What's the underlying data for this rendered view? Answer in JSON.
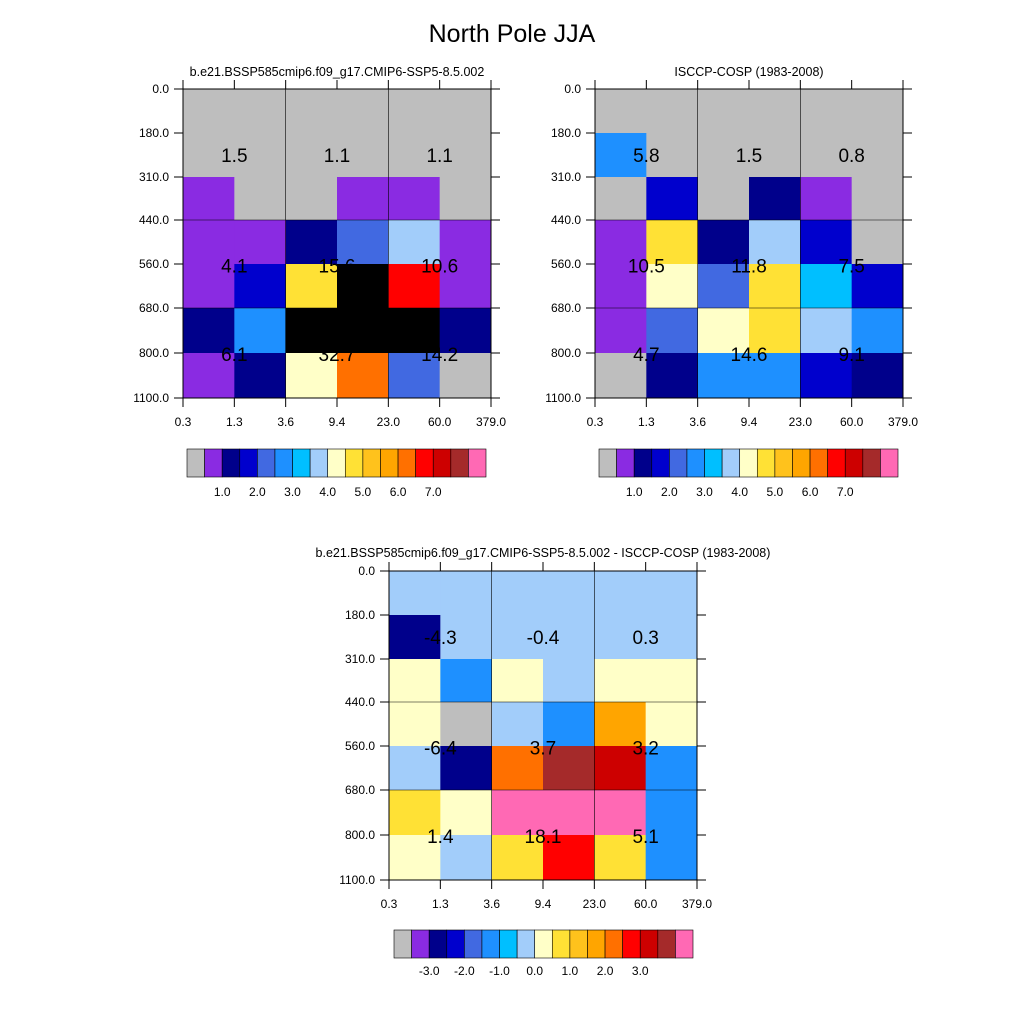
{
  "title": "North Pole JJA",
  "chart_data": [
    {
      "type": "heatmap",
      "title": "b.e21.BSSP585cmip6.f09_g17.CMIP6-SSP5-8.5.002",
      "x_ticks": [
        "0.3",
        "1.3",
        "3.6",
        "9.4",
        "23.0",
        "60.0",
        "379.0"
      ],
      "y_ticks": [
        "0.0",
        "180.0",
        "310.0",
        "440.0",
        "560.0",
        "680.0",
        "800.0",
        "1100.0"
      ],
      "cells": [
        [
          0,
          0,
          0,
          0,
          0,
          0
        ],
        [
          0,
          0,
          0,
          0,
          0,
          0
        ],
        [
          1,
          0,
          0,
          1,
          1,
          0
        ],
        [
          1,
          1,
          2,
          4,
          7,
          1
        ],
        [
          1,
          3,
          9,
          18,
          13,
          1
        ],
        [
          2,
          5,
          18,
          18,
          18,
          2
        ],
        [
          1,
          2,
          8,
          12,
          4,
          0
        ]
      ],
      "summaries": [
        {
          "text": "1.5",
          "col": 0.5,
          "row": 1.5
        },
        {
          "text": "1.1",
          "col": 2.5,
          "row": 1.5
        },
        {
          "text": "1.1",
          "col": 4.5,
          "row": 1.5
        },
        {
          "text": "4.1",
          "col": 0.5,
          "row": 4
        },
        {
          "text": "15.6",
          "col": 2.5,
          "row": 4
        },
        {
          "text": "10.6",
          "col": 4.5,
          "row": 4
        },
        {
          "text": "6.1",
          "col": 0.5,
          "row": 6
        },
        {
          "text": "32.7",
          "col": 2.5,
          "row": 6
        },
        {
          "text": "14.2",
          "col": 4.5,
          "row": 6
        }
      ],
      "colorbar": {
        "colors": [
          "#bebebe",
          "#8a2be2",
          "#00008b",
          "#0000cd",
          "#4169e1",
          "#1e90ff",
          "#00bfff",
          "#a2cdfa",
          "#ffffc8",
          "#ffe135",
          "#ffc21c",
          "#ffa500",
          "#ff7000",
          "#ff0000",
          "#cd0000",
          "#a52a2a",
          "#ff69b4"
        ],
        "labels": [
          "1.0",
          "2.0",
          "3.0",
          "4.0",
          "5.0",
          "6.0",
          "7.0"
        ]
      }
    },
    {
      "type": "heatmap",
      "title": "ISCCP-COSP (1983-2008)",
      "x_ticks": [
        "0.3",
        "1.3",
        "3.6",
        "9.4",
        "23.0",
        "60.0",
        "379.0"
      ],
      "y_ticks": [
        "0.0",
        "180.0",
        "310.0",
        "440.0",
        "560.0",
        "680.0",
        "800.0",
        "1100.0"
      ],
      "cells": [
        [
          0,
          0,
          0,
          0,
          0,
          0
        ],
        [
          5,
          0,
          0,
          0,
          0,
          0
        ],
        [
          0,
          3,
          0,
          2,
          1,
          0
        ],
        [
          1,
          9,
          2,
          7,
          3,
          0
        ],
        [
          1,
          8,
          4,
          9,
          6,
          3
        ],
        [
          1,
          4,
          8,
          9,
          7,
          5
        ],
        [
          0,
          2,
          5,
          5,
          3,
          2
        ]
      ],
      "summaries": [
        {
          "text": "5.8",
          "col": 0.5,
          "row": 1.5
        },
        {
          "text": "1.5",
          "col": 2.5,
          "row": 1.5
        },
        {
          "text": "0.8",
          "col": 4.5,
          "row": 1.5
        },
        {
          "text": "10.5",
          "col": 0.5,
          "row": 4
        },
        {
          "text": "11.8",
          "col": 2.5,
          "row": 4
        },
        {
          "text": "7.5",
          "col": 4.5,
          "row": 4
        },
        {
          "text": "4.7",
          "col": 0.5,
          "row": 6
        },
        {
          "text": "14.6",
          "col": 2.5,
          "row": 6
        },
        {
          "text": "9.1",
          "col": 4.5,
          "row": 6
        }
      ],
      "colorbar": {
        "colors": [
          "#bebebe",
          "#8a2be2",
          "#00008b",
          "#0000cd",
          "#4169e1",
          "#1e90ff",
          "#00bfff",
          "#a2cdfa",
          "#ffffc8",
          "#ffe135",
          "#ffc21c",
          "#ffa500",
          "#ff7000",
          "#ff0000",
          "#cd0000",
          "#a52a2a",
          "#ff69b4"
        ],
        "labels": [
          "1.0",
          "2.0",
          "3.0",
          "4.0",
          "5.0",
          "6.0",
          "7.0"
        ]
      }
    },
    {
      "type": "heatmap",
      "title": "b.e21.BSSP585cmip6.f09_g17.CMIP6-SSP5-8.5.002 - ISCCP-COSP (1983-2008)",
      "x_ticks": [
        "0.3",
        "1.3",
        "3.6",
        "9.4",
        "23.0",
        "60.0",
        "379.0"
      ],
      "y_ticks": [
        "0.0",
        "180.0",
        "310.0",
        "440.0",
        "560.0",
        "680.0",
        "800.0",
        "1100.0"
      ],
      "cells": [
        [
          7,
          7,
          7,
          7,
          7,
          7
        ],
        [
          2,
          7,
          7,
          7,
          7,
          7
        ],
        [
          8,
          5,
          8,
          7,
          8,
          8
        ],
        [
          8,
          0,
          7,
          5,
          11,
          8
        ],
        [
          7,
          2,
          12,
          15,
          14,
          5
        ],
        [
          9,
          8,
          16,
          16,
          16,
          5
        ],
        [
          8,
          7,
          9,
          13,
          9,
          5
        ]
      ],
      "summaries": [
        {
          "text": "-4.3",
          "col": 0.5,
          "row": 1.5
        },
        {
          "text": "-0.4",
          "col": 2.5,
          "row": 1.5
        },
        {
          "text": "0.3",
          "col": 4.5,
          "row": 1.5
        },
        {
          "text": "-6.4",
          "col": 0.5,
          "row": 4
        },
        {
          "text": "3.7",
          "col": 2.5,
          "row": 4
        },
        {
          "text": "3.2",
          "col": 4.5,
          "row": 4
        },
        {
          "text": "1.4",
          "col": 0.5,
          "row": 6
        },
        {
          "text": "18.1",
          "col": 2.5,
          "row": 6
        },
        {
          "text": "5.1",
          "col": 4.5,
          "row": 6
        }
      ],
      "colorbar": {
        "colors": [
          "#bebebe",
          "#8a2be2",
          "#00008b",
          "#0000cd",
          "#4169e1",
          "#1e90ff",
          "#00bfff",
          "#a2cdfa",
          "#ffffc8",
          "#ffe135",
          "#ffc21c",
          "#ffa500",
          "#ff7000",
          "#ff0000",
          "#cd0000",
          "#a52a2a",
          "#ff69b4"
        ],
        "labels": [
          "-3.0",
          "-2.0",
          "-1.0",
          "0.0",
          "1.0",
          "2.0",
          "3.0"
        ]
      }
    }
  ]
}
